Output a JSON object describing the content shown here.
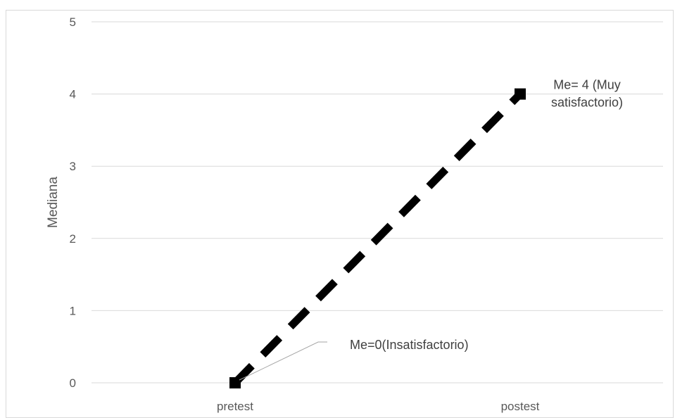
{
  "chart_data": {
    "type": "line",
    "title": "",
    "xlabel": "",
    "ylabel": "Mediana",
    "categories": [
      "pretest",
      "postest"
    ],
    "series": [
      {
        "values": [
          0,
          4
        ],
        "color": "#000000",
        "line_style": "dashed",
        "marker": "square"
      }
    ],
    "ylim": [
      0,
      5
    ],
    "yticks": [
      0,
      1,
      2,
      3,
      4,
      5
    ],
    "grid": true,
    "annotations": [
      {
        "lines": [
          "Me=0(Insatisfactorio)"
        ],
        "category": "pretest",
        "leader_line": true
      },
      {
        "lines": [
          "Me= 4 (Muy",
          "satisfactorio)"
        ],
        "category": "postest",
        "leader_line": false
      }
    ]
  }
}
